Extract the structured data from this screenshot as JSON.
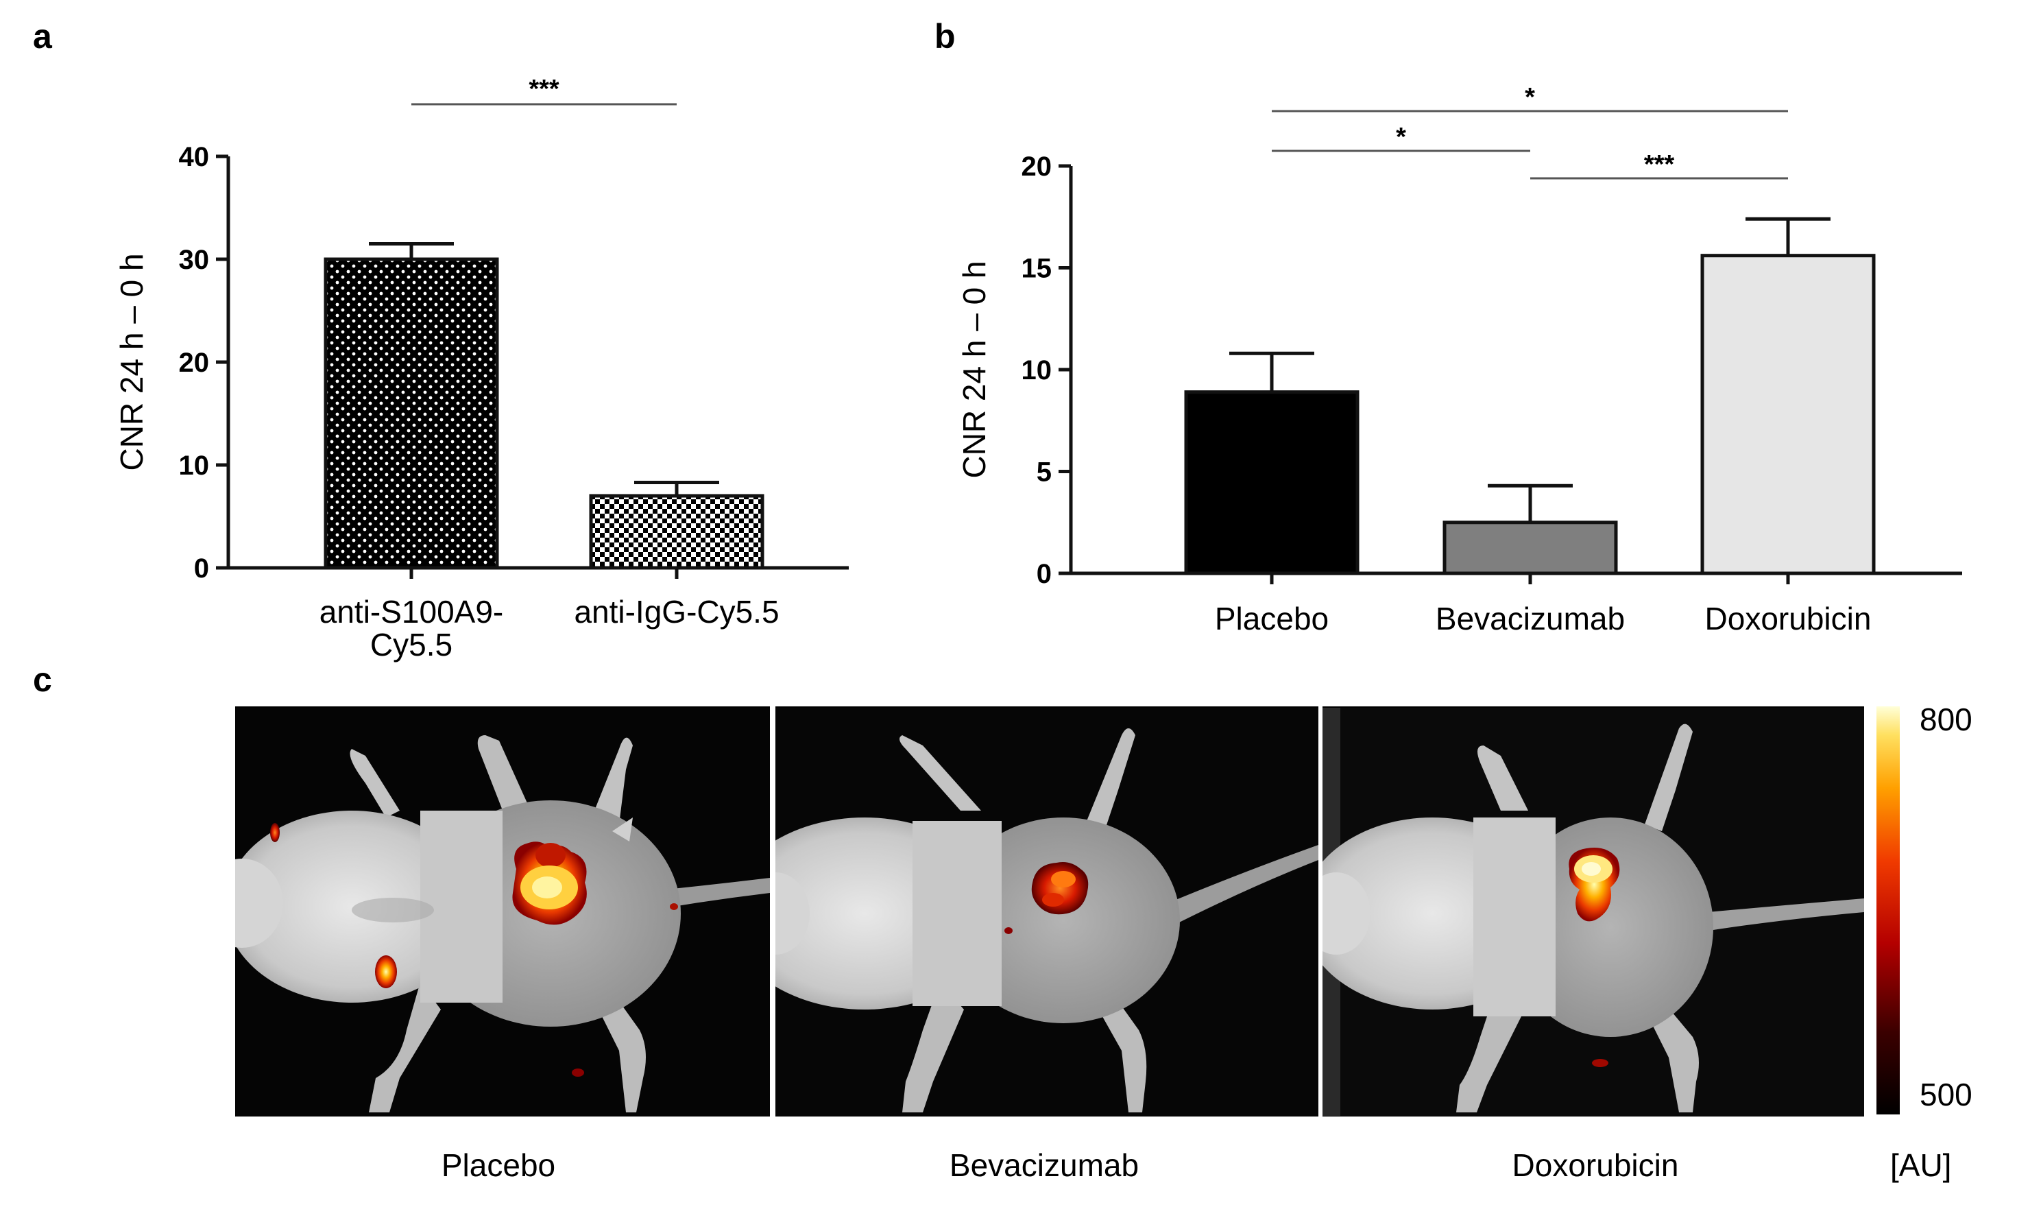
{
  "panels": {
    "a": {
      "letter": "a"
    },
    "b": {
      "letter": "b"
    },
    "c": {
      "letter": "c"
    }
  },
  "chart_data": [
    {
      "panel": "a",
      "type": "bar",
      "categories": [
        [
          "anti-S100A9-",
          "Cy5.5"
        ],
        [
          "anti-IgG-Cy5.5"
        ]
      ],
      "values": [
        30,
        7
      ],
      "errors": [
        1.5,
        1.3
      ],
      "fills": [
        "dots-white-on-black",
        "checker"
      ],
      "ylabel": "CNR 24 h – 0 h",
      "ylim": [
        0,
        40
      ],
      "yticks": [
        0,
        10,
        20,
        30,
        40
      ],
      "significance": [
        {
          "from": 0,
          "to": 1,
          "label": "***"
        }
      ]
    },
    {
      "panel": "b",
      "type": "bar",
      "categories": [
        "Placebo",
        "Bevacizumab",
        "Doxorubicin"
      ],
      "values": [
        8.9,
        2.5,
        15.6
      ],
      "errors": [
        1.9,
        1.8,
        1.8
      ],
      "colors": [
        "#000000",
        "#7f7f7f",
        "#e6e6e6"
      ],
      "ylabel": "CNR 24 h – 0 h",
      "ylim": [
        0,
        20
      ],
      "yticks": [
        0,
        5,
        10,
        15,
        20
      ],
      "significance": [
        {
          "from": 0,
          "to": 2,
          "label": "*"
        },
        {
          "from": 0,
          "to": 1,
          "label": "*"
        },
        {
          "from": 1,
          "to": 2,
          "label": "***"
        }
      ]
    }
  ],
  "imaging": {
    "labels": [
      "Placebo",
      "Bevacizumab",
      "Doxorubicin"
    ],
    "colorbar": {
      "max_label": "800",
      "min_label": "500",
      "unit_label": "[AU]",
      "max": 800,
      "min": 500
    }
  }
}
